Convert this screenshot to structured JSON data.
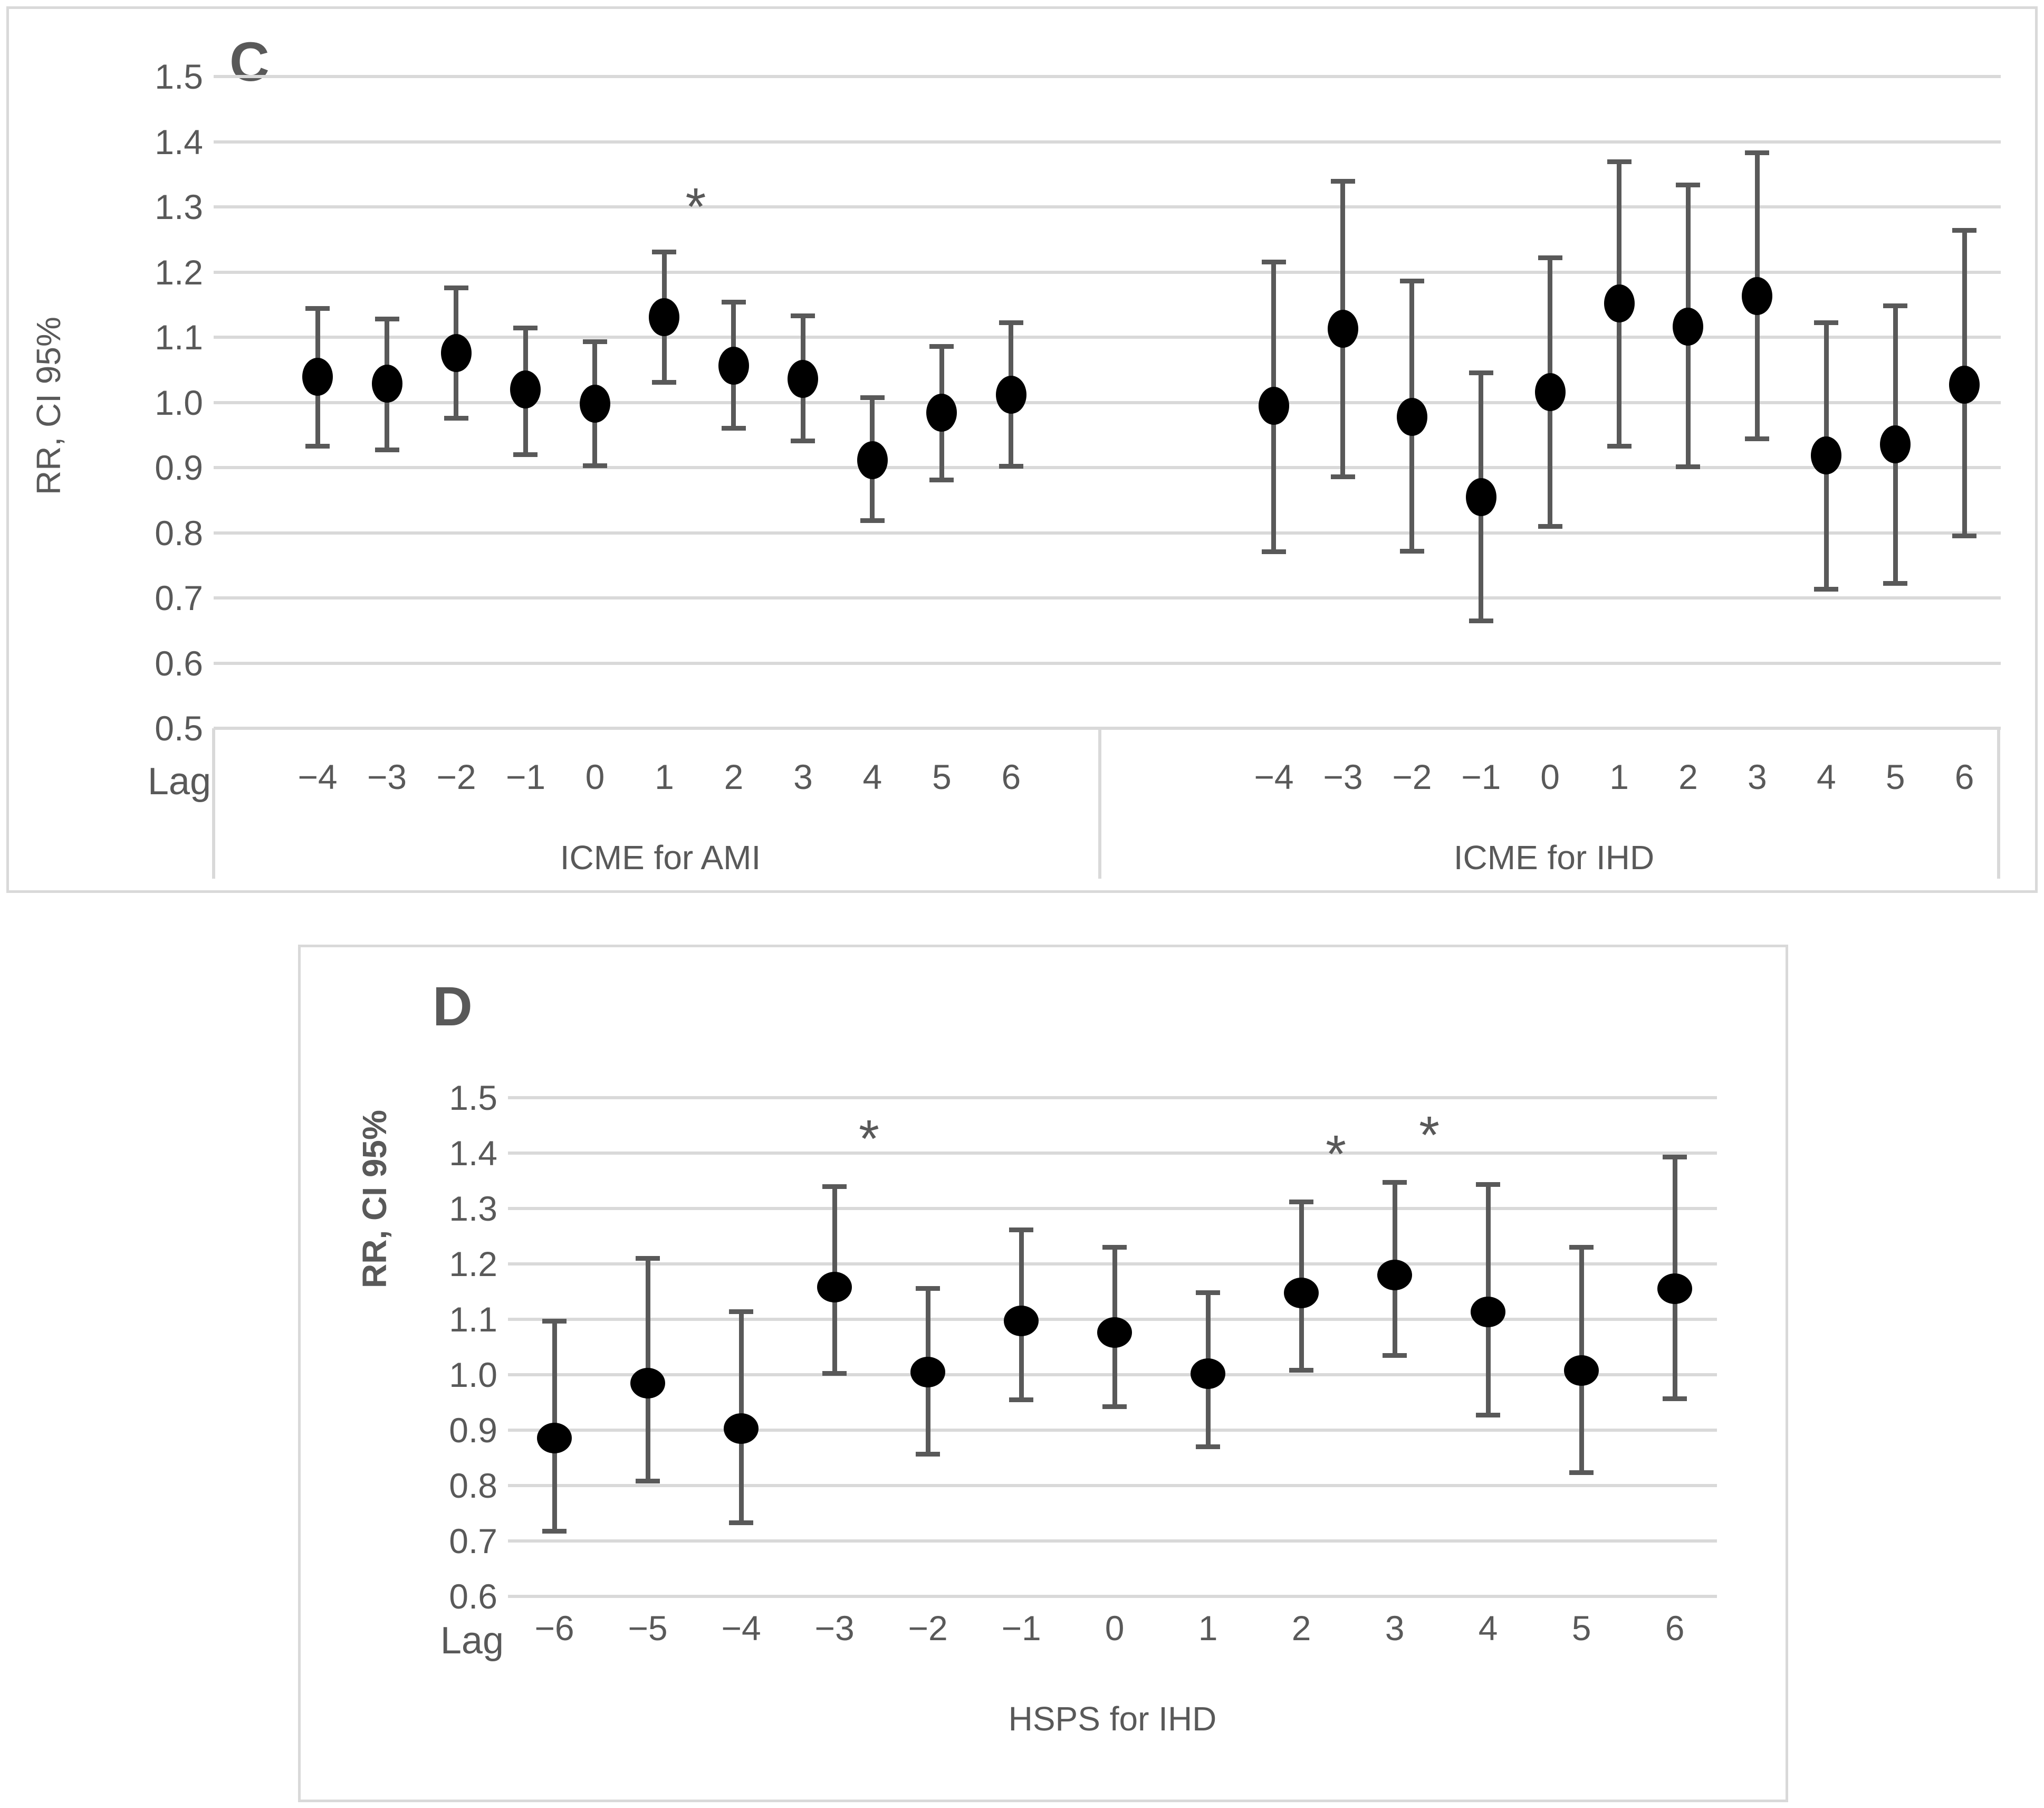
{
  "figure": {
    "background": "#ffffff",
    "text_color": "#595959",
    "gridline_color": "#d9d9d9",
    "errorbar_color": "#595959",
    "marker_color": "#000000",
    "border_color": "#d9d9d9",
    "sig_marker": "*"
  },
  "chart_data": [
    {
      "type": "scatter",
      "panel_label": "C",
      "ylabel": "RR, CI 95%",
      "xlabel": "Lag",
      "ylim": [
        0.5,
        1.5
      ],
      "yticks": [
        1.5,
        1.4,
        1.3,
        1.2,
        1.1,
        1.0,
        0.9,
        0.8,
        0.7,
        0.6,
        0.5
      ],
      "grid": true,
      "legend": false,
      "series": [
        {
          "name": "ICME for AMI",
          "x": [
            -4,
            -3,
            -2,
            -1,
            0,
            1,
            2,
            3,
            4,
            5,
            6
          ],
          "rr": [
            1.039,
            1.029,
            1.076,
            1.02,
            0.998,
            1.131,
            1.056,
            1.036,
            0.911,
            0.984,
            1.012
          ],
          "ci_low": [
            0.933,
            0.927,
            0.976,
            0.92,
            0.903,
            1.031,
            0.96,
            0.941,
            0.819,
            0.881,
            0.902
          ],
          "ci_high": [
            1.144,
            1.128,
            1.176,
            1.114,
            1.093,
            1.231,
            1.154,
            1.133,
            1.007,
            1.086,
            1.122
          ],
          "significant_lags": [
            1
          ]
        },
        {
          "name": "ICME for IHD",
          "x": [
            -4,
            -3,
            -2,
            -1,
            0,
            1,
            2,
            3,
            4,
            5,
            6
          ],
          "rr": [
            0.995,
            1.113,
            0.978,
            0.855,
            1.016,
            1.152,
            1.116,
            1.163,
            0.919,
            0.936,
            1.027
          ],
          "ci_low": [
            0.771,
            0.886,
            0.772,
            0.665,
            0.81,
            0.933,
            0.901,
            0.944,
            0.713,
            0.722,
            0.795
          ],
          "ci_high": [
            1.215,
            1.339,
            1.186,
            1.045,
            1.222,
            1.369,
            1.334,
            1.383,
            1.122,
            1.148,
            1.264
          ],
          "significant_lags": []
        }
      ]
    },
    {
      "type": "scatter",
      "panel_label": "D",
      "ylabel": "RR, CI 95%",
      "xlabel": "Lag",
      "ylim": [
        0.6,
        1.5
      ],
      "yticks": [
        1.5,
        1.4,
        1.3,
        1.2,
        1.1,
        1.0,
        0.9,
        0.8,
        0.7,
        0.6
      ],
      "grid": true,
      "legend": false,
      "series": [
        {
          "name": "HSPS for IHD",
          "x": [
            -6,
            -5,
            -4,
            -3,
            -2,
            -1,
            0,
            1,
            2,
            3,
            4,
            5,
            6
          ],
          "rr": [
            0.886,
            0.985,
            0.903,
            1.158,
            1.005,
            1.097,
            1.076,
            1.002,
            1.148,
            1.18,
            1.113,
            1.008,
            1.155
          ],
          "ci_low": [
            0.718,
            0.808,
            0.733,
            1.002,
            0.857,
            0.955,
            0.942,
            0.87,
            1.008,
            1.035,
            0.927,
            0.823,
            0.957
          ],
          "ci_high": [
            1.097,
            1.21,
            1.114,
            1.34,
            1.156,
            1.261,
            1.23,
            1.148,
            1.312,
            1.347,
            1.343,
            1.23,
            1.393
          ],
          "significant_lags": [
            -3,
            2,
            3
          ]
        }
      ]
    }
  ]
}
